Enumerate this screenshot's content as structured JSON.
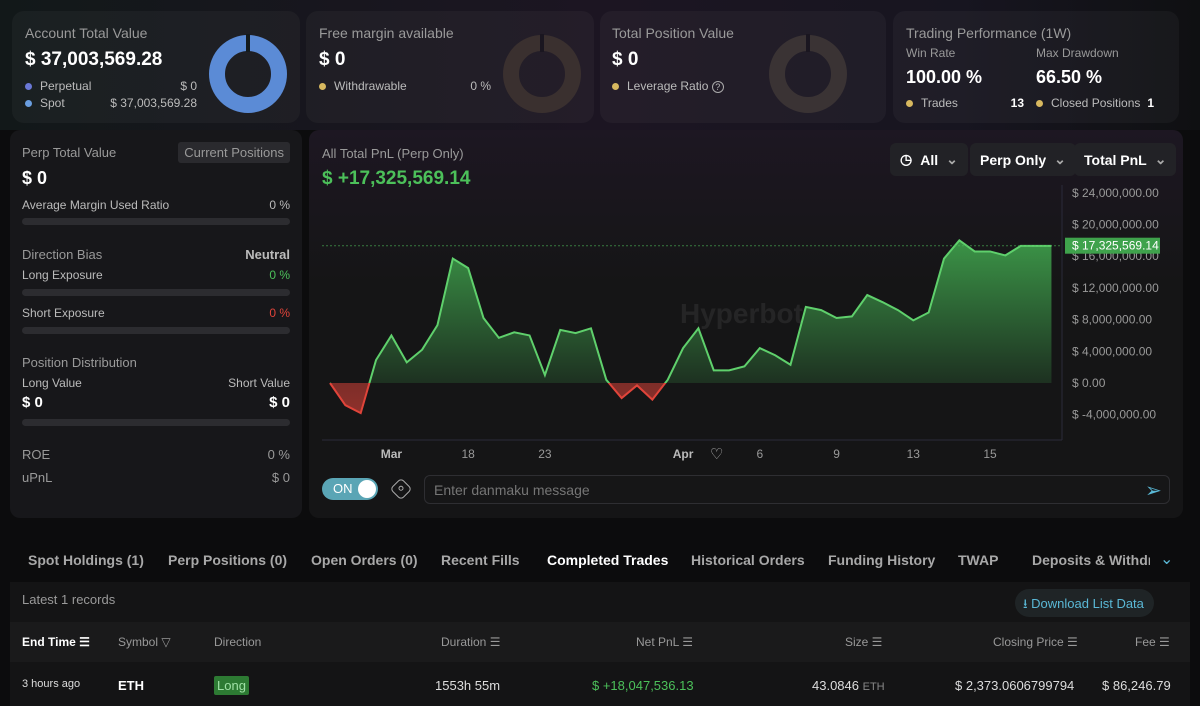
{
  "account": {
    "title": "Account Total Value",
    "value": "$ 37,003,569.28",
    "perp_label": "Perpetual",
    "perp_value": "$ 0",
    "spot_label": "Spot",
    "spot_value": "$ 37,003,569.28"
  },
  "free_margin": {
    "title": "Free margin available",
    "value": "$ 0",
    "withdrawable_label": "Withdrawable",
    "withdrawable_value": "0 %"
  },
  "position_value": {
    "title": "Total Position Value",
    "value": "$ 0",
    "leverage_label": "Leverage Ratio",
    "leverage_value": "-"
  },
  "performance": {
    "title": "Trading Performance (1W)",
    "win_rate_label": "Win Rate",
    "win_rate": "100.00 %",
    "drawdown_label": "Max Drawdown",
    "drawdown": "66.50 %",
    "trades_label": "Trades",
    "trades": "13",
    "closed_label": "Closed Positions",
    "closed": "1"
  },
  "perp": {
    "title": "Perp Total Value",
    "current_btn": "Current Positions",
    "value": "$ 0",
    "margin_label": "Average Margin Used Ratio",
    "margin_value": "0 %",
    "bias_label": "Direction Bias",
    "bias_value": "Neutral",
    "long_exp_label": "Long Exposure",
    "long_exp": "0 %",
    "short_exp_label": "Short Exposure",
    "short_exp": "0 %",
    "dist_label": "Position Distribution",
    "long_val_label": "Long Value",
    "long_val": "$ 0",
    "short_val_label": "Short Value",
    "short_val": "$ 0",
    "roe_label": "ROE",
    "roe": "0 %",
    "upnl_label": "uPnL",
    "upnl": "$ 0"
  },
  "pnl": {
    "title": "All Total PnL (Perp Only)",
    "value": "$ +17,325,569.14",
    "filter_time": "All",
    "filter_type": "Perp Only",
    "filter_metric": "Total PnL",
    "watermark": "Hyperbot",
    "toggle": "ON",
    "danmaku_placeholder": "Enter danmaku message"
  },
  "chart_data": {
    "type": "area",
    "ylim": [
      -6000000,
      26000000
    ],
    "yticks": [
      "$ 24,000,000.00",
      "$ 20,000,000.00",
      "$ 16,000,000.00",
      "$ 12,000,000.00",
      "$ 8,000,000.00",
      "$ 4,000,000.00",
      "$ 0.00",
      "$ -4,000,000.00"
    ],
    "ytick_values": [
      24000000,
      20000000,
      16000000,
      12000000,
      8000000,
      4000000,
      0,
      -4000000
    ],
    "current_label": "$ 17,325,569.14",
    "current_value": 17325569.14,
    "xticks": [
      {
        "label": "Mar",
        "i": 4
      },
      {
        "label": "18",
        "i": 9
      },
      {
        "label": "23",
        "i": 14
      },
      {
        "label": "Apr",
        "i": 23
      },
      {
        "label": "6",
        "i": 28
      },
      {
        "label": "9",
        "i": 33
      },
      {
        "label": "13",
        "i": 38
      },
      {
        "label": "15",
        "i": 43
      }
    ],
    "values_m": [
      0,
      -2.8,
      -3.8,
      2.9,
      6.0,
      2.6,
      4.2,
      7.3,
      15.7,
      14.5,
      8.2,
      5.7,
      6.4,
      6.0,
      1.0,
      6.7,
      6.3,
      6.9,
      0.4,
      -1.9,
      -0.3,
      -2.1,
      0.4,
      4.4,
      6.9,
      1.6,
      1.6,
      2.1,
      4.4,
      3.5,
      2.3,
      9.6,
      9.2,
      8.2,
      8.4,
      11.1,
      10.2,
      9.2,
      7.9,
      8.9,
      15.7,
      18.0,
      16.6,
      16.6,
      16.1,
      17.3,
      17.3,
      17.3
    ]
  },
  "tabs": [
    "Spot Holdings (1)",
    "Perp Positions (0)",
    "Open Orders (0)",
    "Recent Fills",
    "Completed Trades",
    "Historical Orders",
    "Funding History",
    "TWAP",
    "Deposits & Withdraw"
  ],
  "records": "Latest 1 records",
  "download": "Download List Data",
  "columns": [
    "End Time",
    "Symbol",
    "Direction",
    "Duration",
    "Net PnL",
    "Size",
    "Closing Price",
    "Fee"
  ],
  "row": {
    "end_time": "3 hours ago",
    "symbol": "ETH",
    "direction": "Long",
    "duration": "1553h 55m",
    "net_pnl": "$ +18,047,536.13",
    "size": "43.0846",
    "size_unit": "ETH",
    "closing_price": "$ 2,373.0606799794",
    "fee": "$ 86,246.79"
  },
  "colors": {
    "green": "#4cc05a",
    "red": "#e0443a",
    "blue": "#5b8bd6",
    "yellow": "#d7b85f",
    "teal": "#5aa5b5"
  }
}
